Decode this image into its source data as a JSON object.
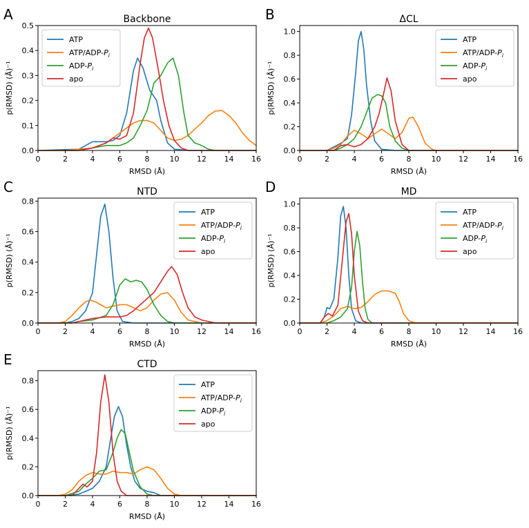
{
  "colors": {
    "ATP": "#1f77b4",
    "ATP/ADP-Pi": "#ff7f0e",
    "ADP-Pi": "#2ca02c",
    "apo": "#d62728"
  },
  "legend_labels": {
    "ATP": "ATP",
    "ATP/ADP-Pi": "ATP/ADP-Pi",
    "ADP-Pi": "ADP-Pi",
    "apo": "apo"
  },
  "chart_data": [
    {
      "panel": "A",
      "type": "line",
      "title": "Backbone",
      "xlabel": "RMSD (Å)",
      "ylabel": "p(RMSD) (Å)⁻¹",
      "xlim": [
        0,
        16
      ],
      "ylim": [
        0,
        0.5
      ],
      "xticks": [
        0,
        2,
        4,
        6,
        8,
        10,
        12,
        14,
        16
      ],
      "yticks": [
        0.0,
        0.1,
        0.2,
        0.3,
        0.4,
        0.5
      ],
      "series": [
        {
          "name": "ATP",
          "x": [
            0,
            3,
            3.5,
            4,
            5,
            5.5,
            6,
            6.5,
            7,
            7.3,
            7.7,
            8.2,
            8.7,
            9,
            9.5,
            10,
            11,
            12,
            16
          ],
          "y": [
            0,
            0.005,
            0.02,
            0.035,
            0.035,
            0.04,
            0.06,
            0.15,
            0.32,
            0.37,
            0.33,
            0.24,
            0.2,
            0.12,
            0.03,
            0.005,
            0,
            0,
            0
          ]
        },
        {
          "name": "ATP/ADP-Pi",
          "x": [
            0,
            2,
            3,
            4,
            5,
            6,
            7,
            7.5,
            8,
            8.5,
            9,
            9.5,
            10,
            10.5,
            11,
            11.5,
            12,
            12.5,
            13,
            13.5,
            14,
            14.5,
            15,
            15.5,
            16
          ],
          "y": [
            0,
            0,
            0.005,
            0.01,
            0.03,
            0.07,
            0.11,
            0.12,
            0.12,
            0.11,
            0.08,
            0.05,
            0.04,
            0.045,
            0.06,
            0.085,
            0.11,
            0.14,
            0.158,
            0.16,
            0.14,
            0.11,
            0.07,
            0.04,
            0.02
          ]
        },
        {
          "name": "ADP-Pi",
          "x": [
            0,
            3,
            4,
            5,
            6,
            6.5,
            7,
            7.5,
            8,
            8.5,
            9,
            9.5,
            9.9,
            10.3,
            10.7,
            11,
            11.5,
            12,
            12.5,
            13,
            16
          ],
          "y": [
            0,
            0,
            0.01,
            0.02,
            0.02,
            0.03,
            0.05,
            0.1,
            0.16,
            0.27,
            0.3,
            0.35,
            0.37,
            0.3,
            0.15,
            0.06,
            0.03,
            0.02,
            0.005,
            0,
            0
          ]
        },
        {
          "name": "apo",
          "x": [
            0,
            3,
            4,
            4.5,
            5,
            5.5,
            6,
            6.5,
            7,
            7.5,
            7.8,
            8.1,
            8.4,
            8.8,
            9.2,
            9.6,
            10,
            10.5,
            11,
            16
          ],
          "y": [
            0,
            0,
            0.01,
            0.02,
            0.03,
            0.05,
            0.045,
            0.06,
            0.15,
            0.35,
            0.45,
            0.49,
            0.45,
            0.33,
            0.2,
            0.1,
            0.04,
            0.01,
            0,
            0
          ]
        }
      ]
    },
    {
      "panel": "B",
      "type": "line",
      "title": "ΔCL",
      "xlabel": "RMSD (Å)",
      "ylabel": "p(RMSD) (Å)⁻¹",
      "xlim": [
        0,
        16
      ],
      "ylim": [
        0,
        1.05
      ],
      "xticks": [
        0,
        2,
        4,
        6,
        8,
        10,
        12,
        14,
        16
      ],
      "yticks": [
        0.0,
        0.2,
        0.4,
        0.6,
        0.8,
        1.0
      ],
      "series": [
        {
          "name": "ATP",
          "x": [
            0,
            2,
            2.5,
            3,
            3.5,
            3.8,
            4.1,
            4.3,
            4.5,
            4.7,
            4.9,
            5.2,
            5.5,
            6,
            7,
            16
          ],
          "y": [
            0,
            0,
            0.03,
            0.06,
            0.1,
            0.3,
            0.65,
            0.92,
            1.0,
            0.85,
            0.55,
            0.25,
            0.08,
            0.01,
            0,
            0
          ]
        },
        {
          "name": "ATP/ADP-Pi",
          "x": [
            0,
            2,
            2.5,
            3,
            3.5,
            4,
            4.5,
            5,
            5.5,
            6,
            6.5,
            7,
            7.5,
            8,
            8.3,
            8.7,
            9.2,
            9.7,
            10,
            16
          ],
          "y": [
            0,
            0,
            0.02,
            0.05,
            0.12,
            0.17,
            0.14,
            0.1,
            0.14,
            0.18,
            0.14,
            0.1,
            0.15,
            0.27,
            0.28,
            0.2,
            0.06,
            0.01,
            0,
            0
          ]
        },
        {
          "name": "ADP-Pi",
          "x": [
            0,
            2.5,
            3,
            3.5,
            4,
            4.5,
            5,
            5.3,
            5.7,
            6,
            6.3,
            6.6,
            7,
            7.5,
            8,
            16
          ],
          "y": [
            0,
            0,
            0.02,
            0.05,
            0.1,
            0.2,
            0.35,
            0.44,
            0.47,
            0.46,
            0.4,
            0.2,
            0.08,
            0.02,
            0,
            0
          ]
        },
        {
          "name": "apo",
          "x": [
            0,
            2.5,
            3,
            3.5,
            4,
            4.5,
            5,
            5.5,
            5.8,
            6.1,
            6.4,
            6.7,
            7,
            7.5,
            8,
            16
          ],
          "y": [
            0,
            0,
            0.04,
            0.05,
            0.03,
            0.05,
            0.1,
            0.2,
            0.3,
            0.45,
            0.61,
            0.5,
            0.25,
            0.05,
            0,
            0
          ]
        }
      ]
    },
    {
      "panel": "C",
      "type": "line",
      "title": "NTD",
      "xlabel": "RMSD (Å)",
      "ylabel": "p(RMSD) (Å)⁻¹",
      "xlim": [
        0,
        16
      ],
      "ylim": [
        0,
        0.82
      ],
      "xticks": [
        0,
        2,
        4,
        6,
        8,
        10,
        12,
        14,
        16
      ],
      "yticks": [
        0.0,
        0.2,
        0.4,
        0.6,
        0.8
      ],
      "series": [
        {
          "name": "ATP",
          "x": [
            0,
            2,
            2.5,
            3,
            3.5,
            4,
            4.3,
            4.6,
            4.9,
            5.2,
            5.5,
            5.8,
            6.2,
            7,
            16
          ],
          "y": [
            0,
            0,
            0.01,
            0.03,
            0.08,
            0.2,
            0.45,
            0.7,
            0.78,
            0.6,
            0.3,
            0.08,
            0.01,
            0,
            0
          ]
        },
        {
          "name": "ATP/ADP-Pi",
          "x": [
            0,
            1.5,
            2,
            2.5,
            3,
            3.5,
            3.8,
            4.2,
            4.6,
            5,
            5.5,
            6,
            6.5,
            7,
            7.5,
            8,
            8.5,
            9,
            9.5,
            10,
            10.5,
            11,
            11.5,
            12,
            16
          ],
          "y": [
            0,
            0,
            0.01,
            0.05,
            0.1,
            0.14,
            0.15,
            0.14,
            0.12,
            0.1,
            0.11,
            0.12,
            0.12,
            0.1,
            0.08,
            0.1,
            0.15,
            0.19,
            0.2,
            0.15,
            0.07,
            0.02,
            0.01,
            0,
            0
          ]
        },
        {
          "name": "ADP-Pi",
          "x": [
            0,
            2.5,
            3,
            4,
            5,
            5.5,
            6,
            6.4,
            6.8,
            7.2,
            7.6,
            8,
            8.5,
            9,
            9.5,
            10,
            10.5,
            11,
            16
          ],
          "y": [
            0,
            0,
            0.01,
            0.02,
            0.05,
            0.12,
            0.25,
            0.29,
            0.27,
            0.28,
            0.27,
            0.22,
            0.12,
            0.05,
            0.01,
            0,
            0,
            0,
            0
          ]
        },
        {
          "name": "apo",
          "x": [
            0,
            2.5,
            3,
            4,
            5,
            6,
            6.5,
            7,
            7.5,
            8,
            8.5,
            9,
            9.5,
            9.8,
            10.2,
            10.6,
            11,
            11.5,
            12,
            13,
            16
          ],
          "y": [
            0,
            0,
            0.01,
            0.03,
            0.04,
            0.04,
            0.05,
            0.08,
            0.12,
            0.16,
            0.2,
            0.27,
            0.34,
            0.37,
            0.32,
            0.2,
            0.1,
            0.04,
            0.02,
            0,
            0
          ]
        }
      ]
    },
    {
      "panel": "D",
      "type": "line",
      "title": "MD",
      "xlabel": "RMSD (Å)",
      "ylabel": "p(RMSD) (Å)⁻¹",
      "xlim": [
        0,
        16
      ],
      "ylim": [
        0,
        1.05
      ],
      "xticks": [
        0,
        2,
        4,
        6,
        8,
        10,
        12,
        14,
        16
      ],
      "yticks": [
        0.0,
        0.2,
        0.4,
        0.6,
        0.8,
        1.0
      ],
      "series": [
        {
          "name": "ATP",
          "x": [
            0,
            1.5,
            1.8,
            2,
            2.2,
            2.5,
            2.8,
            3,
            3.2,
            3.4,
            3.6,
            3.8,
            4.1,
            4.5,
            16
          ],
          "y": [
            0,
            0,
            0.05,
            0.13,
            0.12,
            0.2,
            0.55,
            0.9,
            0.98,
            0.8,
            0.4,
            0.12,
            0.02,
            0,
            0
          ]
        },
        {
          "name": "ATP/ADP-Pi",
          "x": [
            0,
            1.5,
            2,
            2.5,
            3,
            3.5,
            4,
            4.5,
            5,
            5.5,
            6,
            6.5,
            7,
            7.3,
            7.6,
            8,
            8.5,
            16
          ],
          "y": [
            0,
            0,
            0.02,
            0.06,
            0.12,
            0.14,
            0.12,
            0.13,
            0.18,
            0.24,
            0.27,
            0.27,
            0.25,
            0.18,
            0.08,
            0.02,
            0,
            0
          ]
        },
        {
          "name": "ADP-Pi",
          "x": [
            0,
            2,
            2.5,
            3,
            3.5,
            3.8,
            4,
            4.2,
            4.4,
            4.6,
            4.8,
            5,
            5.3,
            16
          ],
          "y": [
            0,
            0,
            0.02,
            0.05,
            0.12,
            0.3,
            0.6,
            0.77,
            0.65,
            0.35,
            0.12,
            0.03,
            0,
            0
          ]
        },
        {
          "name": "apo",
          "x": [
            0,
            1.5,
            1.8,
            2.1,
            2.4,
            2.8,
            3.1,
            3.4,
            3.6,
            3.8,
            4,
            4.3,
            4.6,
            5,
            16
          ],
          "y": [
            0,
            0,
            0.05,
            0.08,
            0.06,
            0.15,
            0.5,
            0.85,
            0.92,
            0.75,
            0.4,
            0.1,
            0.02,
            0,
            0
          ]
        }
      ]
    },
    {
      "panel": "E",
      "type": "line",
      "title": "CTD",
      "xlabel": "RMSD (Å)",
      "ylabel": "p(RMSD) (Å)⁻¹",
      "xlim": [
        0,
        16
      ],
      "ylim": [
        0,
        0.87
      ],
      "xticks": [
        0,
        2,
        4,
        6,
        8,
        10,
        12,
        14,
        16
      ],
      "yticks": [
        0.0,
        0.2,
        0.4,
        0.6,
        0.8
      ],
      "series": [
        {
          "name": "ATP",
          "x": [
            0,
            2,
            3,
            4,
            4.5,
            5,
            5.3,
            5.6,
            5.9,
            6.2,
            6.5,
            6.8,
            7.1,
            7.5,
            8,
            8.5,
            9,
            16
          ],
          "y": [
            0,
            0,
            0.01,
            0.05,
            0.1,
            0.2,
            0.38,
            0.55,
            0.62,
            0.55,
            0.35,
            0.2,
            0.1,
            0.05,
            0.03,
            0.02,
            0,
            0
          ]
        },
        {
          "name": "ATP/ADP-Pi",
          "x": [
            0,
            1.5,
            2,
            2.5,
            3,
            3.5,
            4,
            4.5,
            5,
            5.5,
            6,
            6.5,
            7,
            7.5,
            8,
            8.5,
            9,
            9.5,
            10,
            10.5,
            16
          ],
          "y": [
            0,
            0,
            0.01,
            0.04,
            0.1,
            0.14,
            0.16,
            0.15,
            0.15,
            0.17,
            0.16,
            0.16,
            0.15,
            0.18,
            0.2,
            0.18,
            0.12,
            0.05,
            0.01,
            0,
            0
          ]
        },
        {
          "name": "ADP-Pi",
          "x": [
            0,
            2,
            3,
            3.5,
            4,
            4.5,
            5,
            5.5,
            5.8,
            6.1,
            6.4,
            6.7,
            7,
            7.5,
            8,
            8.5,
            16
          ],
          "y": [
            0,
            0,
            0.03,
            0.08,
            0.12,
            0.17,
            0.18,
            0.3,
            0.4,
            0.46,
            0.43,
            0.3,
            0.17,
            0.06,
            0.01,
            0,
            0
          ]
        },
        {
          "name": "apo",
          "x": [
            0,
            2.5,
            3,
            3.3,
            3.6,
            4,
            4.3,
            4.6,
            4.9,
            5.2,
            5.5,
            5.8,
            6.1,
            6.5,
            7,
            16
          ],
          "y": [
            0,
            0,
            0.05,
            0.08,
            0.06,
            0.1,
            0.3,
            0.65,
            0.84,
            0.65,
            0.3,
            0.1,
            0.03,
            0,
            0,
            0
          ]
        }
      ]
    }
  ]
}
